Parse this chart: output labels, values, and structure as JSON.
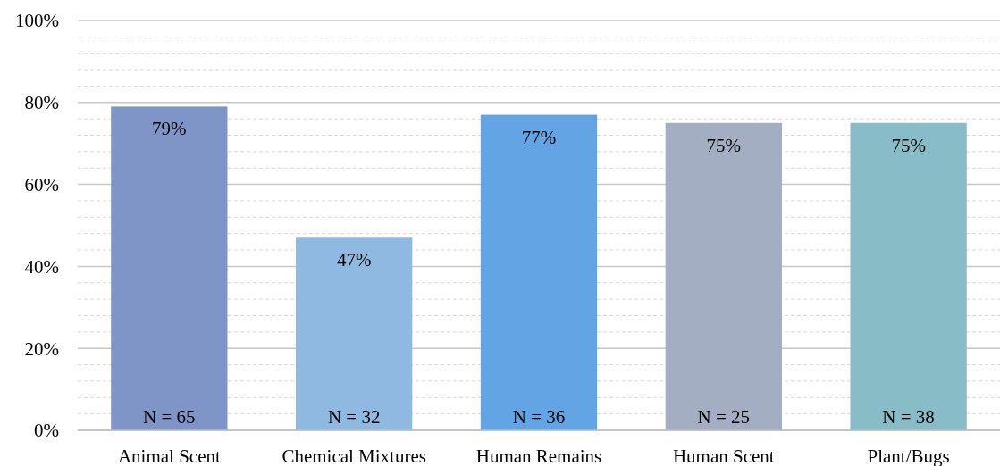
{
  "chart_data": {
    "type": "bar",
    "categories": [
      "Animal Scent",
      "Chemical Mixtures",
      "Human Remains",
      "Human Scent",
      "Plant/Bugs"
    ],
    "values": [
      79,
      47,
      77,
      75,
      75
    ],
    "colors": [
      "#7f95c7",
      "#8fb9e0",
      "#63a5e4",
      "#a3aec3",
      "#88bdc8"
    ],
    "value_labels": [
      "79%",
      "47%",
      "77%",
      "75%",
      "75%"
    ],
    "annotations": [
      {
        "text": "N = 65",
        "x": "Animal Scent",
        "y": 0
      },
      {
        "text": "N = 32",
        "x": "Chemical Mixtures",
        "y": 0
      },
      {
        "text": "N = 36",
        "x": "Human Remains",
        "y": 0
      },
      {
        "text": "N = 25",
        "x": "Human Scent",
        "y": 0
      },
      {
        "text": "N = 38",
        "x": "Plant/Bugs",
        "y": 0
      }
    ],
    "ylim": [
      0,
      100
    ],
    "yticks": [
      {
        "value": 0,
        "label": "0%"
      },
      {
        "value": 4,
        "label": null
      },
      {
        "value": 8,
        "label": null
      },
      {
        "value": 12,
        "label": null
      },
      {
        "value": 16,
        "label": null
      },
      {
        "value": 20,
        "label": "20%"
      },
      {
        "value": 24,
        "label": null
      },
      {
        "value": 28,
        "label": null
      },
      {
        "value": 32,
        "label": null
      },
      {
        "value": 36,
        "label": null
      },
      {
        "value": 40,
        "label": "40%"
      },
      {
        "value": 44,
        "label": null
      },
      {
        "value": 48,
        "label": null
      },
      {
        "value": 52,
        "label": null
      },
      {
        "value": 56,
        "label": null
      },
      {
        "value": 60,
        "label": "60%"
      },
      {
        "value": 64,
        "label": null
      },
      {
        "value": 68,
        "label": null
      },
      {
        "value": 72,
        "label": null
      },
      {
        "value": 76,
        "label": null
      },
      {
        "value": 80,
        "label": "80%"
      },
      {
        "value": 84,
        "label": null
      },
      {
        "value": 88,
        "label": null
      },
      {
        "value": 92,
        "label": null
      },
      {
        "value": 96,
        "label": null
      },
      {
        "value": 100,
        "label": "100%"
      }
    ],
    "grid": "y"
  }
}
